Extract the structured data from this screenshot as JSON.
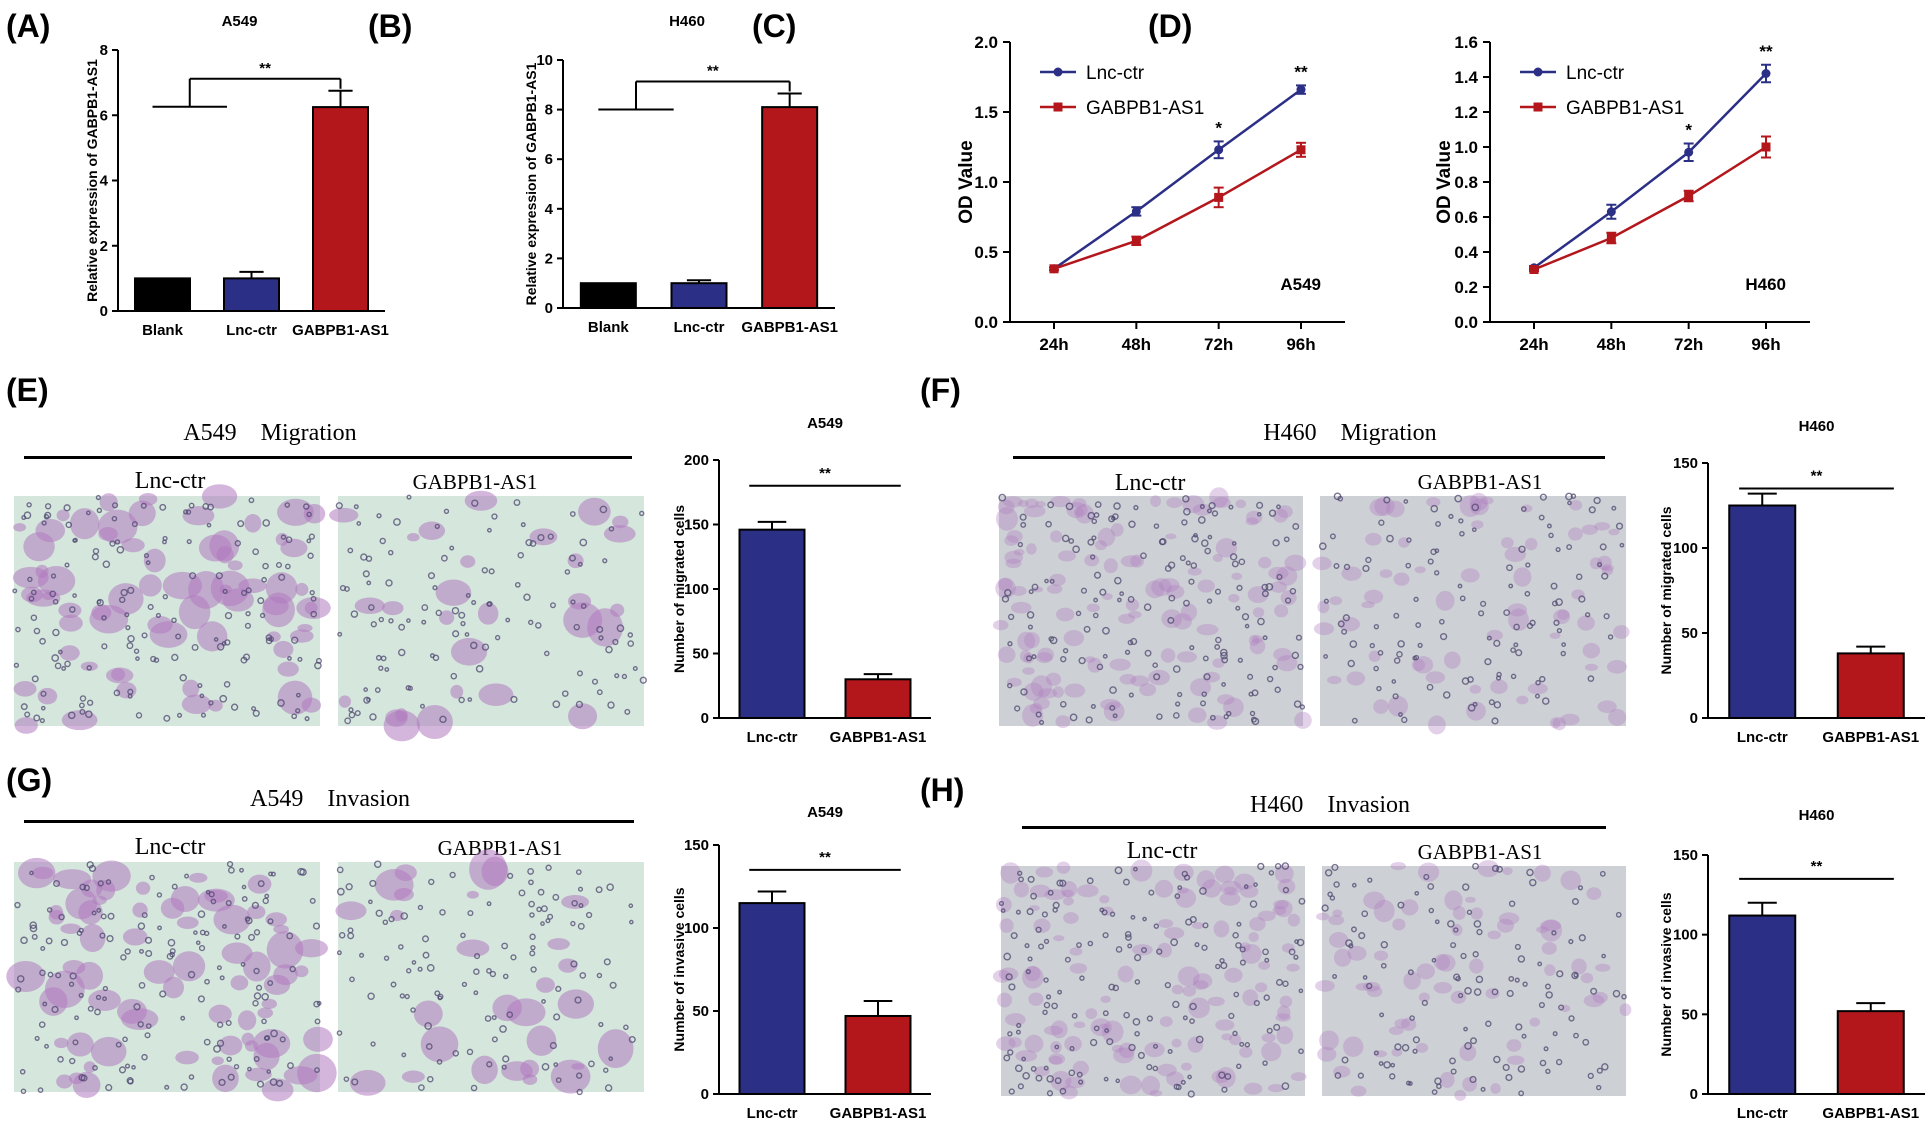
{
  "panel_labels": [
    "(A)",
    "(B)",
    "(C)",
    "(D)",
    "(E)",
    "(F)",
    "(G)",
    "(H)"
  ],
  "colors": {
    "blank": "#000000",
    "lnc_ctr": "#2b2f86",
    "gabpb1": "#b3171c",
    "micro_bg_a549": "#d5e6dc",
    "micro_bg_h460": "#cdd0d4",
    "stain": "#b07ac0",
    "nucleus": "#4d4770"
  },
  "sig": {
    "double": "**",
    "single": "*"
  },
  "image_panels": [
    {
      "id": "E",
      "header": "A549    Migration",
      "captions": [
        "Lnc-ctr",
        "GABPB1-AS1"
      ]
    },
    {
      "id": "F",
      "header": "H460    Migration",
      "captions": [
        "Lnc-ctr",
        "GABPB1-AS1"
      ]
    },
    {
      "id": "G",
      "header": "A549    Invasion",
      "captions": [
        "Lnc-ctr",
        "GABPB1-AS1"
      ]
    },
    {
      "id": "H",
      "header": "H460    Invasion",
      "captions": [
        "Lnc-ctr",
        "GABPB1-AS1"
      ]
    }
  ],
  "chart_data": [
    {
      "id": "A",
      "type": "bar",
      "title": "A549",
      "categories": [
        "Blank",
        "Lnc-ctr",
        "GABPB1-AS1"
      ],
      "values": [
        1.0,
        1.0,
        6.25
      ],
      "errors": [
        0.0,
        0.2,
        0.5
      ],
      "ylabel": "Relative expression of GABPB1-AS1",
      "ylim": [
        0,
        8
      ],
      "yticks": [
        0,
        2,
        4,
        6,
        8
      ],
      "significance": "**"
    },
    {
      "id": "B",
      "type": "bar",
      "title": "H460",
      "categories": [
        "Blank",
        "Lnc-ctr",
        "GABPB1-AS1"
      ],
      "values": [
        1.0,
        1.0,
        8.1
      ],
      "errors": [
        0.0,
        0.12,
        0.55
      ],
      "ylabel": "Relative expression of GABPB1-AS1",
      "ylim": [
        0,
        10
      ],
      "yticks": [
        0,
        2,
        4,
        6,
        8,
        10
      ],
      "significance": "**"
    },
    {
      "id": "C",
      "type": "line",
      "annotation": "A549",
      "x": [
        "24h",
        "48h",
        "72h",
        "96h"
      ],
      "series": [
        {
          "name": "Lnc-ctr",
          "values": [
            0.38,
            0.79,
            1.23,
            1.66
          ],
          "errors": [
            0.01,
            0.03,
            0.06,
            0.03
          ]
        },
        {
          "name": "GABPB1-AS1",
          "values": [
            0.38,
            0.58,
            0.89,
            1.23
          ],
          "errors": [
            0.01,
            0.03,
            0.07,
            0.05
          ]
        }
      ],
      "significance": [
        "",
        "",
        "*",
        "**"
      ],
      "ylabel": "OD Value",
      "ylim": [
        0,
        2.0
      ],
      "yticks": [
        0.0,
        0.5,
        1.0,
        1.5,
        2.0
      ],
      "legend": "top-left"
    },
    {
      "id": "D",
      "type": "line",
      "annotation": "H460",
      "x": [
        "24h",
        "48h",
        "72h",
        "96h"
      ],
      "series": [
        {
          "name": "Lnc-ctr",
          "values": [
            0.31,
            0.63,
            0.97,
            1.42
          ],
          "errors": [
            0.01,
            0.04,
            0.05,
            0.05
          ]
        },
        {
          "name": "GABPB1-AS1",
          "values": [
            0.3,
            0.48,
            0.72,
            1.0
          ],
          "errors": [
            0.01,
            0.03,
            0.03,
            0.06
          ]
        }
      ],
      "significance": [
        "",
        "",
        "*",
        "**"
      ],
      "ylabel": "OD Value",
      "ylim": [
        0,
        1.6
      ],
      "yticks": [
        0.0,
        0.2,
        0.4,
        0.6,
        0.8,
        1.0,
        1.2,
        1.4,
        1.6
      ],
      "legend": "top-left"
    },
    {
      "id": "E",
      "type": "bar",
      "title": "A549",
      "categories": [
        "Lnc-ctr",
        "GABPB1-AS1"
      ],
      "values": [
        146,
        30
      ],
      "errors": [
        6,
        4
      ],
      "ylabel": "Number of migrated cells",
      "ylim": [
        0,
        200
      ],
      "yticks": [
        0,
        50,
        100,
        150,
        200
      ],
      "significance": "**"
    },
    {
      "id": "F",
      "type": "bar",
      "title": "H460",
      "categories": [
        "Lnc-ctr",
        "GABPB1-AS1"
      ],
      "values": [
        125,
        38
      ],
      "errors": [
        7,
        4
      ],
      "ylabel": "Number of migrated cells",
      "ylim": [
        0,
        150
      ],
      "yticks": [
        0,
        50,
        100,
        150
      ],
      "significance": "**"
    },
    {
      "id": "G",
      "type": "bar",
      "title": "A549",
      "categories": [
        "Lnc-ctr",
        "GABPB1-AS1"
      ],
      "values": [
        115,
        47
      ],
      "errors": [
        7,
        9
      ],
      "ylabel": "Number of invasive cells",
      "ylim": [
        0,
        150
      ],
      "yticks": [
        0,
        50,
        100,
        150
      ],
      "significance": "**"
    },
    {
      "id": "H",
      "type": "bar",
      "title": "H460",
      "categories": [
        "Lnc-ctr",
        "GABPB1-AS1"
      ],
      "values": [
        112,
        52
      ],
      "errors": [
        8,
        5
      ],
      "ylabel": "Number of invasive cells",
      "ylim": [
        0,
        150
      ],
      "yticks": [
        0,
        50,
        100,
        150
      ],
      "significance": "**"
    }
  ]
}
